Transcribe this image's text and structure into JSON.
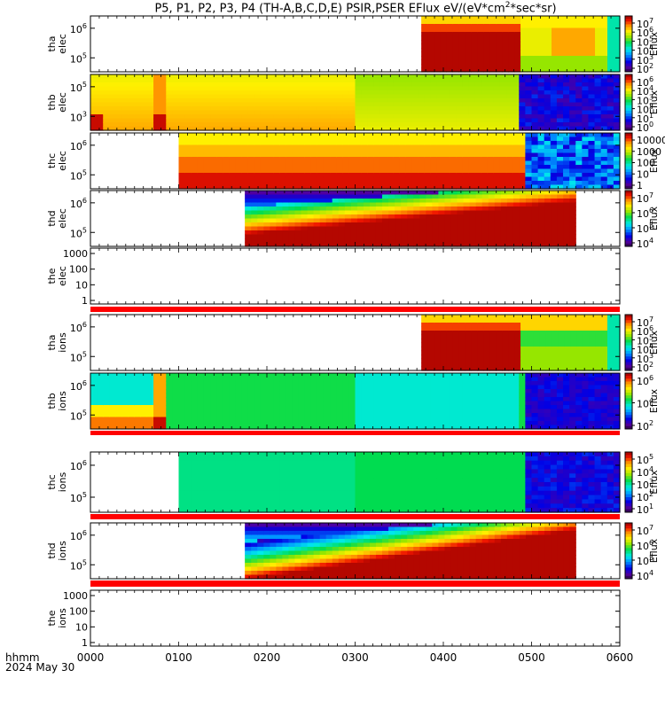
{
  "title_main": "P5, P1, P2, P3, P4 (TH-A,B,C,D,E) PSIR,PSER EFlux eV/(eV*cm",
  "title_sup": "2",
  "title_end": "*sec*sr)",
  "time_axis": {
    "label_line1": "hhmm",
    "label_line2": "2024 May 30",
    "ticks": [
      "0000",
      "0100",
      "0200",
      "0300",
      "0400",
      "0500",
      "0600"
    ]
  },
  "colorbar_label": "Eflux",
  "chart_data": {
    "type": "heatmap",
    "x_units": "hhmm",
    "x_range": [
      "0000",
      "0600"
    ],
    "panels": [
      {
        "id": "tha-elec",
        "name_top": "tha",
        "name_bottom": "elec",
        "data_start_hhmm": "0345",
        "data_end_hhmm": "0600",
        "y_ticks": [
          {
            "base": "10",
            "exp": "6"
          },
          {
            "base": "10",
            "exp": "5"
          }
        ],
        "colorbar_ticks": [
          {
            "base": "10",
            "exp": "7"
          },
          {
            "base": "10",
            "exp": "6"
          },
          {
            "base": "10",
            "exp": "5"
          },
          {
            "base": "10",
            "exp": "4"
          },
          {
            "base": "10",
            "exp": "3"
          },
          {
            "base": "10",
            "exp": "2"
          }
        ]
      },
      {
        "id": "thb-elec",
        "name_top": "thb",
        "name_bottom": "elec",
        "data_start_hhmm": "0000",
        "data_end_hhmm": "0600",
        "y_ticks": [
          {
            "base": "10",
            "exp": "5"
          },
          {
            "base": "10",
            "exp": "3"
          }
        ],
        "colorbar_ticks": [
          {
            "base": "10",
            "exp": "6"
          },
          {
            "base": "10",
            "exp": "4"
          },
          {
            "base": "10",
            "exp": "3"
          },
          {
            "base": "10",
            "exp": "2"
          },
          {
            "base": "10",
            "exp": "1"
          },
          {
            "base": "10",
            "exp": "0"
          }
        ]
      },
      {
        "id": "thc-elec",
        "name_top": "thc",
        "name_bottom": "elec",
        "data_start_hhmm": "0100",
        "data_end_hhmm": "0600",
        "y_ticks": [
          {
            "base": "10",
            "exp": "6"
          },
          {
            "base": "10",
            "exp": "5"
          }
        ],
        "colorbar_ticks": [
          {
            "base": "",
            "exp": "",
            "text": "10000"
          },
          {
            "base": "",
            "exp": "",
            "text": "1000"
          },
          {
            "base": "",
            "exp": "",
            "text": "100"
          },
          {
            "base": "",
            "exp": "",
            "text": "10"
          },
          {
            "base": "",
            "exp": "",
            "text": "1"
          }
        ]
      },
      {
        "id": "thd-elec",
        "name_top": "thd",
        "name_bottom": "elec",
        "data_start_hhmm": "0145",
        "data_end_hhmm": "0530",
        "y_ticks": [
          {
            "base": "10",
            "exp": "6"
          },
          {
            "base": "10",
            "exp": "5"
          }
        ],
        "colorbar_ticks": [
          {
            "base": "10",
            "exp": "7"
          },
          {
            "base": "10",
            "exp": "6"
          },
          {
            "base": "10",
            "exp": "5"
          },
          {
            "base": "10",
            "exp": "4"
          }
        ]
      },
      {
        "id": "the-elec",
        "name_top": "the",
        "name_bottom": "elec",
        "empty": true,
        "y_ticks_text": [
          "1000",
          "100",
          "10",
          "1"
        ]
      },
      {
        "id": "tha-ions",
        "name_top": "tha",
        "name_bottom": "ions",
        "data_start_hhmm": "0345",
        "data_end_hhmm": "0600",
        "y_ticks": [
          {
            "base": "10",
            "exp": "6"
          },
          {
            "base": "10",
            "exp": "5"
          }
        ],
        "colorbar_ticks": [
          {
            "base": "10",
            "exp": "7"
          },
          {
            "base": "10",
            "exp": "6"
          },
          {
            "base": "10",
            "exp": "5"
          },
          {
            "base": "10",
            "exp": "4"
          },
          {
            "base": "10",
            "exp": "3"
          },
          {
            "base": "10",
            "exp": "2"
          }
        ]
      },
      {
        "id": "thb-ions",
        "name_top": "thb",
        "name_bottom": "ions",
        "data_start_hhmm": "0000",
        "data_end_hhmm": "0600",
        "y_ticks": [
          {
            "base": "10",
            "exp": "6"
          },
          {
            "base": "10",
            "exp": "5"
          }
        ],
        "colorbar_ticks": [
          {
            "base": "10",
            "exp": "6"
          },
          {
            "base": "10",
            "exp": "4"
          },
          {
            "base": "10",
            "exp": "2"
          }
        ]
      },
      {
        "id": "thc-ions",
        "name_top": "thc",
        "name_bottom": "ions",
        "data_start_hhmm": "0100",
        "data_end_hhmm": "0600",
        "y_ticks": [
          {
            "base": "10",
            "exp": "6"
          },
          {
            "base": "10",
            "exp": "5"
          }
        ],
        "colorbar_ticks": [
          {
            "base": "10",
            "exp": "5"
          },
          {
            "base": "10",
            "exp": "4"
          },
          {
            "base": "10",
            "exp": "3"
          },
          {
            "base": "10",
            "exp": "2"
          },
          {
            "base": "10",
            "exp": "1"
          }
        ]
      },
      {
        "id": "thd-ions",
        "name_top": "thd",
        "name_bottom": "ions",
        "data_start_hhmm": "0145",
        "data_end_hhmm": "0530",
        "y_ticks": [
          {
            "base": "10",
            "exp": "6"
          },
          {
            "base": "10",
            "exp": "5"
          }
        ],
        "colorbar_ticks": [
          {
            "base": "10",
            "exp": "7"
          },
          {
            "base": "10",
            "exp": "6"
          },
          {
            "base": "10",
            "exp": "5"
          },
          {
            "base": "10",
            "exp": "4"
          }
        ]
      },
      {
        "id": "the-ions",
        "name_top": "the",
        "name_bottom": "ions",
        "empty": true,
        "y_ticks_text": [
          "1000",
          "100",
          "10",
          "1"
        ]
      }
    ]
  }
}
